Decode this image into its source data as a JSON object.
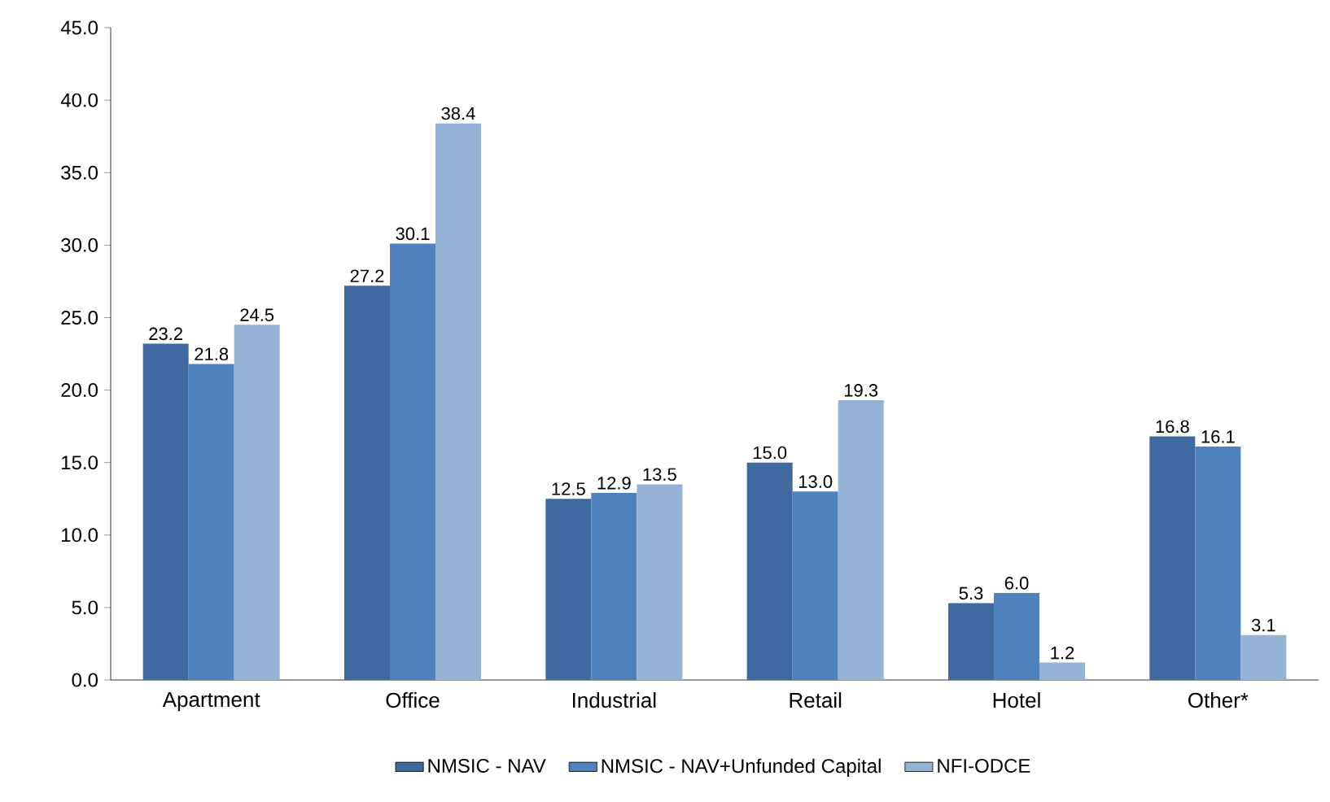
{
  "chart_data": {
    "type": "bar",
    "categories": [
      "Apartment",
      "Office",
      "Industrial",
      "Retail",
      "Hotel",
      "Other*"
    ],
    "series": [
      {
        "name": "NMSIC - NAV",
        "color": "#3f6aa0",
        "values": [
          23.2,
          27.2,
          12.5,
          15.0,
          5.3,
          16.8
        ],
        "value_labels": [
          "23.2",
          "27.2",
          "12.5",
          "15.0",
          "5.3",
          "16.8"
        ]
      },
      {
        "name": "NMSIC - NAV+Unfunded Capital",
        "color": "#4f81bd",
        "values": [
          21.8,
          30.1,
          12.9,
          13.0,
          6.0,
          16.1
        ],
        "value_labels": [
          "21.8",
          "30.1",
          "12.9",
          "13.0",
          "6.0",
          "16.1"
        ]
      },
      {
        "name": "NFI-ODCE",
        "color": "#95b3d7",
        "values": [
          24.5,
          38.4,
          13.5,
          19.3,
          1.2,
          3.1
        ],
        "value_labels": [
          "24.5",
          "38.4",
          "13.5",
          "19.3",
          "1.2",
          "3.1"
        ]
      }
    ],
    "ylim": [
      0,
      45
    ],
    "yticks": [
      {
        "value": 0,
        "label": "0.0"
      },
      {
        "value": 5,
        "label": "5.0"
      },
      {
        "value": 10,
        "label": "10.0"
      },
      {
        "value": 15,
        "label": "15.0"
      },
      {
        "value": 20,
        "label": "20.0"
      },
      {
        "value": 25,
        "label": "25.0"
      },
      {
        "value": 30,
        "label": "30.0"
      },
      {
        "value": 35,
        "label": "35.0"
      },
      {
        "value": 40,
        "label": "40.0"
      },
      {
        "value": 45,
        "label": "45.0"
      }
    ],
    "legend": "bottom",
    "grid": false
  }
}
